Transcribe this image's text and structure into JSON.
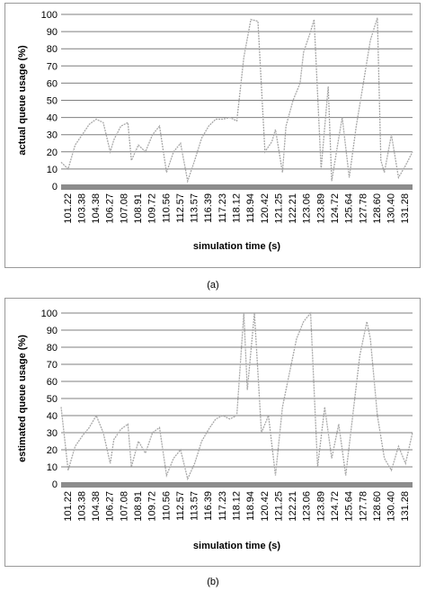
{
  "chart_data": [
    {
      "type": "line",
      "ylabel": "actual queue usage (%)",
      "xlabel": "simulation time (s)",
      "ylim": [
        0,
        100
      ],
      "yticks": [
        "0",
        "10",
        "20",
        "30",
        "40",
        "50",
        "60",
        "70",
        "80",
        "90",
        "100"
      ],
      "xticks": [
        "101.22",
        "103.38",
        "104.38",
        "106.27",
        "107.08",
        "108.91",
        "109.72",
        "110.56",
        "112.57",
        "113.57",
        "116.39",
        "117.23",
        "118.12",
        "118.94",
        "120.42",
        "121.25",
        "122.21",
        "123.06",
        "123.89",
        "124.72",
        "125.64",
        "127.78",
        "128.60",
        "130.40",
        "131.28"
      ],
      "grid": true,
      "x_fraction": [
        0,
        0.02,
        0.04,
        0.06,
        0.08,
        0.1,
        0.12,
        0.14,
        0.15,
        0.17,
        0.19,
        0.2,
        0.22,
        0.24,
        0.26,
        0.28,
        0.3,
        0.32,
        0.34,
        0.36,
        0.38,
        0.4,
        0.42,
        0.44,
        0.46,
        0.48,
        0.5,
        0.52,
        0.54,
        0.56,
        0.58,
        0.6,
        0.61,
        0.63,
        0.64,
        0.66,
        0.68,
        0.69,
        0.71,
        0.72,
        0.74,
        0.76,
        0.77,
        0.79,
        0.8,
        0.82,
        0.84,
        0.86,
        0.88,
        0.9,
        0.91,
        0.92,
        0.94,
        0.96,
        0.98,
        1
      ],
      "values": [
        14,
        10,
        24,
        30,
        36,
        39,
        37,
        20,
        27,
        35,
        37,
        15,
        24,
        20,
        30,
        35,
        8,
        20,
        25,
        3,
        15,
        28,
        35,
        39,
        39,
        40,
        38,
        75,
        97,
        96,
        20,
        26,
        33,
        8,
        35,
        50,
        60,
        78,
        90,
        97,
        10,
        58,
        3,
        28,
        40,
        5,
        35,
        60,
        85,
        98,
        15,
        8,
        30,
        5,
        12,
        20
      ]
    },
    {
      "type": "line",
      "ylabel": "estimated queue usage (%)",
      "xlabel": "simulation time (s)",
      "ylim": [
        0,
        100
      ],
      "yticks": [
        "0",
        "10",
        "20",
        "30",
        "40",
        "50",
        "60",
        "70",
        "80",
        "90",
        "100"
      ],
      "xticks": [
        "101.22",
        "103.38",
        "104.38",
        "106.27",
        "107.08",
        "108.91",
        "109.72",
        "110.56",
        "112.57",
        "113.57",
        "116.39",
        "117.23",
        "118.12",
        "118.94",
        "120.42",
        "121.25",
        "122.21",
        "123.06",
        "123.89",
        "124.72",
        "125.64",
        "127.78",
        "128.60",
        "130.40",
        "131.28"
      ],
      "grid": true,
      "x_fraction": [
        0,
        0.02,
        0.04,
        0.06,
        0.08,
        0.1,
        0.12,
        0.14,
        0.15,
        0.17,
        0.19,
        0.2,
        0.22,
        0.24,
        0.26,
        0.28,
        0.3,
        0.32,
        0.34,
        0.36,
        0.38,
        0.4,
        0.42,
        0.44,
        0.46,
        0.48,
        0.5,
        0.52,
        0.53,
        0.55,
        0.57,
        0.59,
        0.61,
        0.63,
        0.65,
        0.67,
        0.69,
        0.71,
        0.73,
        0.75,
        0.77,
        0.79,
        0.81,
        0.83,
        0.85,
        0.87,
        0.88,
        0.9,
        0.92,
        0.94,
        0.96,
        0.98,
        1
      ],
      "values": [
        45,
        8,
        22,
        28,
        33,
        40,
        30,
        12,
        26,
        32,
        35,
        10,
        25,
        18,
        30,
        33,
        5,
        15,
        20,
        3,
        12,
        25,
        32,
        38,
        40,
        38,
        40,
        100,
        55,
        100,
        30,
        40,
        5,
        45,
        65,
        85,
        95,
        100,
        10,
        45,
        15,
        35,
        5,
        40,
        75,
        95,
        85,
        40,
        15,
        8,
        22,
        12,
        30
      ]
    }
  ],
  "captions": {
    "a": "(a)",
    "b": "(b)"
  },
  "colors": {
    "series": "#a8a8a8",
    "grid": "#7f7f7f",
    "axis_band": "#8c8c8c"
  }
}
